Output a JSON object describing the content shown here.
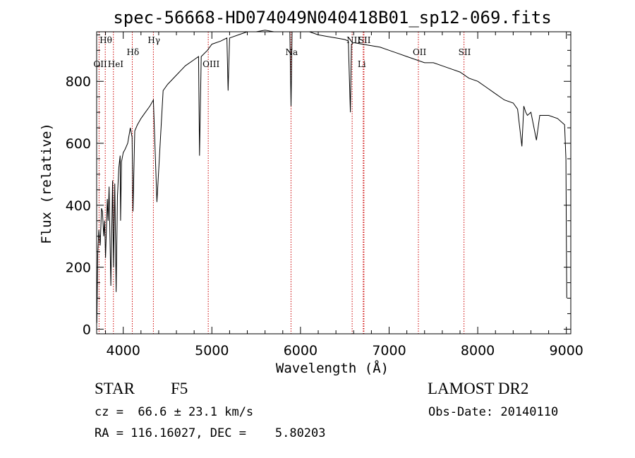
{
  "chart_data": {
    "type": "line",
    "title": "spec-56668-HD074049N040418B01_sp12-069.fits",
    "xlabel": "Wavelength (Å)",
    "ylabel": "Flux (relative)",
    "xlim": [
      3700,
      9050
    ],
    "ylim": [
      -15,
      960
    ],
    "xticks": [
      4000,
      5000,
      6000,
      7000,
      8000,
      9000
    ],
    "yticks": [
      0,
      200,
      400,
      600,
      800
    ],
    "xtick_labels": [
      "4000",
      "5000",
      "6000",
      "7000",
      "8000",
      "9000"
    ],
    "ytick_labels": [
      "0",
      "200",
      "400",
      "600",
      "800"
    ],
    "series": [
      {
        "x": [
          3702,
          3712,
          3725,
          3740,
          3755,
          3765,
          3780,
          3790,
          3800,
          3820,
          3830,
          3840,
          3860,
          3880,
          3890,
          3905,
          3920,
          3935,
          3950,
          3965,
          3970,
          3980,
          4000,
          4020,
          4050,
          4080,
          4100,
          4110,
          4130,
          4160,
          4200,
          4250,
          4300,
          4340,
          4380,
          4450,
          4500,
          4600,
          4700,
          4800,
          4850,
          4861,
          4880,
          4950,
          5000,
          5100,
          5170,
          5183,
          5200,
          5300,
          5400,
          5500,
          5600,
          5700,
          5800,
          5880,
          5893,
          5905,
          5950,
          6000,
          6100,
          6200,
          6300,
          6400,
          6500,
          6540,
          6563,
          6575,
          6600,
          6700,
          6800,
          6900,
          7000,
          7100,
          7200,
          7300,
          7400,
          7500,
          7600,
          7700,
          7800,
          7900,
          8000,
          8100,
          8200,
          8300,
          8400,
          8450,
          8498,
          8520,
          8542,
          8560,
          8600,
          8662,
          8700,
          8800,
          8900,
          8980,
          8995,
          9000,
          9005
        ],
        "y": [
          20,
          240,
          320,
          270,
          390,
          380,
          300,
          350,
          230,
          420,
          350,
          460,
          140,
          480,
          200,
          470,
          120,
          430,
          520,
          560,
          350,
          540,
          570,
          580,
          600,
          650,
          620,
          380,
          640,
          660,
          680,
          700,
          720,
          740,
          410,
          770,
          790,
          820,
          850,
          870,
          880,
          560,
          880,
          900,
          920,
          930,
          940,
          770,
          940,
          950,
          960,
          960,
          965,
          960,
          960,
          960,
          720,
          960,
          960,
          960,
          960,
          950,
          945,
          940,
          935,
          930,
          700,
          920,
          925,
          920,
          915,
          910,
          900,
          890,
          880,
          870,
          860,
          860,
          850,
          840,
          830,
          810,
          800,
          780,
          760,
          740,
          730,
          710,
          590,
          720,
          700,
          690,
          700,
          610,
          690,
          690,
          680,
          660,
          550,
          300,
          100
        ]
      }
    ],
    "spectral_lines": [
      {
        "label": "Hθ",
        "x": 3797,
        "tier": 0
      },
      {
        "label": "OII",
        "x": 3727,
        "tier": 2
      },
      {
        "label": "HeI",
        "x": 3889,
        "tier": 2
      },
      {
        "label": "Hδ",
        "x": 4102,
        "tier": 1
      },
      {
        "label": "Hγ",
        "x": 4340,
        "tier": 0
      },
      {
        "label": "OIII",
        "x": 4959,
        "tier": 2
      },
      {
        "label": "Na",
        "x": 5893,
        "tier": 1
      },
      {
        "label": "NII",
        "x": 6583,
        "tier": 0
      },
      {
        "label": "SII",
        "x": 6716,
        "tier": 0
      },
      {
        "label": "Li",
        "x": 6708,
        "tier": 2
      },
      {
        "label": "OII",
        "x": 7330,
        "tier": 1
      },
      {
        "label": "SII",
        "x": 7845,
        "tier": 1
      }
    ],
    "line_color": "#000000",
    "marker_color": "#cc0000",
    "grid": false
  },
  "info": {
    "class": "STAR",
    "subclass": "F5",
    "survey": "LAMOST DR2",
    "redshift": "cz =  66.6 ± 23.1 km/s",
    "obs_date": "Obs-Date: 20140110",
    "coords": "RA = 116.16027, DEC =    5.80203"
  }
}
